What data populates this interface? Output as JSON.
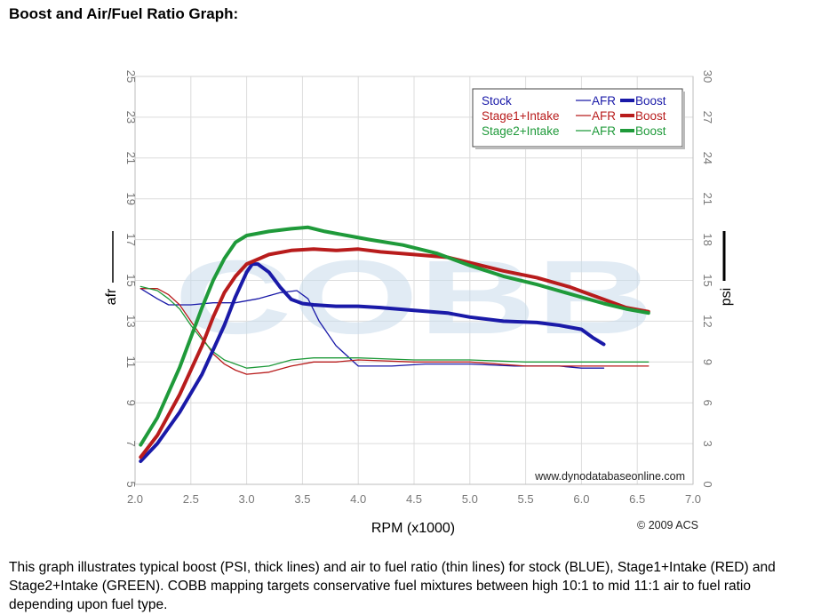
{
  "page": {
    "title": "Boost and Air/Fuel Ratio Graph:",
    "caption": "This graph illustrates typical boost (PSI, thick lines) and air to fuel ratio (thin lines) for stock (BLUE), Stage1+Intake (RED) and Stage2+Intake (GREEN). COBB mapping targets conservative fuel mixtures between high 10:1 to mid 11:1 air to fuel ratio depending upon fuel type."
  },
  "chart_data": {
    "type": "line",
    "xlabel": "RPM (x1000)",
    "ylabel_left": "afr",
    "ylabel_right": "psi",
    "xlim": [
      2.0,
      7.0
    ],
    "ylim_left": [
      5,
      25
    ],
    "ylim_right": [
      0,
      30
    ],
    "x_ticks": [
      "2.0",
      "2.5",
      "3.0",
      "3.5",
      "4.0",
      "4.5",
      "5.0",
      "5.5",
      "6.0",
      "6.5",
      "7.0"
    ],
    "y_left_ticks": [
      "5",
      "7",
      "9",
      "11",
      "13",
      "15",
      "17",
      "19",
      "21",
      "23",
      "25"
    ],
    "y_right_ticks": [
      "0",
      "3",
      "6",
      "9",
      "12",
      "15",
      "18",
      "21",
      "24",
      "27",
      "30"
    ],
    "grid": true,
    "watermark": "COBB",
    "source_text": "www.dynodatabaseonline.com",
    "copyright": "© 2009 ACS",
    "legend": {
      "position": "top-right",
      "afr_label": "AFR",
      "boost_label": "Boost",
      "entries": [
        "Stock",
        "Stage1+Intake",
        "Stage2+Intake"
      ]
    },
    "colors": {
      "Stock": "#1a1aa8",
      "Stage1+Intake": "#b81c1c",
      "Stage2+Intake": "#1f9a3a"
    },
    "series": [
      {
        "name": "Stock",
        "measure": "Boost",
        "axis": "psi",
        "x": [
          2.05,
          2.2,
          2.4,
          2.6,
          2.8,
          2.9,
          3.0,
          3.05,
          3.1,
          3.2,
          3.3,
          3.4,
          3.5,
          3.6,
          3.8,
          4.0,
          4.2,
          4.5,
          4.8,
          5.0,
          5.3,
          5.6,
          5.8,
          6.0,
          6.1,
          6.2
        ],
        "values": [
          1.7,
          3.0,
          5.3,
          8.1,
          11.7,
          13.8,
          15.6,
          16.2,
          16.2,
          15.6,
          14.5,
          13.6,
          13.3,
          13.2,
          13.1,
          13.1,
          13.0,
          12.8,
          12.6,
          12.3,
          12.0,
          11.9,
          11.7,
          11.4,
          10.8,
          10.3
        ]
      },
      {
        "name": "Stage1+Intake",
        "measure": "Boost",
        "axis": "psi",
        "x": [
          2.05,
          2.2,
          2.4,
          2.6,
          2.7,
          2.8,
          2.9,
          3.0,
          3.2,
          3.4,
          3.6,
          3.8,
          4.0,
          4.2,
          4.5,
          4.8,
          5.0,
          5.3,
          5.6,
          5.9,
          6.2,
          6.4,
          6.6
        ],
        "values": [
          2.0,
          3.6,
          6.6,
          10.2,
          12.3,
          14.1,
          15.3,
          16.2,
          16.9,
          17.2,
          17.3,
          17.2,
          17.3,
          17.1,
          16.9,
          16.7,
          16.3,
          15.7,
          15.2,
          14.5,
          13.6,
          13.0,
          12.7
        ]
      },
      {
        "name": "Stage2+Intake",
        "measure": "Boost",
        "axis": "psi",
        "x": [
          2.05,
          2.2,
          2.4,
          2.6,
          2.7,
          2.8,
          2.9,
          3.0,
          3.2,
          3.4,
          3.55,
          3.7,
          3.9,
          4.1,
          4.4,
          4.7,
          5.0,
          5.3,
          5.6,
          5.9,
          6.2,
          6.4,
          6.6
        ],
        "values": [
          2.9,
          4.9,
          8.6,
          13.0,
          15.0,
          16.6,
          17.8,
          18.3,
          18.6,
          18.8,
          18.9,
          18.6,
          18.3,
          18.0,
          17.6,
          17.0,
          16.1,
          15.3,
          14.7,
          14.0,
          13.3,
          12.9,
          12.6
        ]
      },
      {
        "name": "Stock",
        "measure": "AFR",
        "axis": "afr",
        "x": [
          2.05,
          2.2,
          2.3,
          2.5,
          2.7,
          2.9,
          3.1,
          3.3,
          3.45,
          3.55,
          3.65,
          3.8,
          4.0,
          4.3,
          4.6,
          5.0,
          5.4,
          5.8,
          6.0,
          6.2
        ],
        "values": [
          14.6,
          14.1,
          13.8,
          13.8,
          13.9,
          13.9,
          14.1,
          14.4,
          14.5,
          14.1,
          13.0,
          11.8,
          10.8,
          10.8,
          10.9,
          10.9,
          10.8,
          10.8,
          10.7,
          10.7
        ]
      },
      {
        "name": "Stage1+Intake",
        "measure": "AFR",
        "axis": "afr",
        "x": [
          2.05,
          2.2,
          2.3,
          2.4,
          2.5,
          2.6,
          2.7,
          2.8,
          2.9,
          3.0,
          3.2,
          3.4,
          3.6,
          3.8,
          4.0,
          4.5,
          5.0,
          5.5,
          6.0,
          6.6
        ],
        "values": [
          14.6,
          14.6,
          14.3,
          13.8,
          13.0,
          12.2,
          11.4,
          10.9,
          10.6,
          10.4,
          10.5,
          10.8,
          11.0,
          11.0,
          11.1,
          11.0,
          11.0,
          10.8,
          10.8,
          10.8
        ]
      },
      {
        "name": "Stage2+Intake",
        "measure": "AFR",
        "axis": "afr",
        "x": [
          2.05,
          2.2,
          2.3,
          2.4,
          2.5,
          2.6,
          2.7,
          2.8,
          2.9,
          3.0,
          3.2,
          3.4,
          3.6,
          3.8,
          4.0,
          4.5,
          5.0,
          5.5,
          6.0,
          6.6
        ],
        "values": [
          14.7,
          14.5,
          14.1,
          13.6,
          12.8,
          12.1,
          11.5,
          11.1,
          10.9,
          10.7,
          10.8,
          11.1,
          11.2,
          11.2,
          11.2,
          11.1,
          11.1,
          11.0,
          11.0,
          11.0
        ]
      }
    ]
  }
}
